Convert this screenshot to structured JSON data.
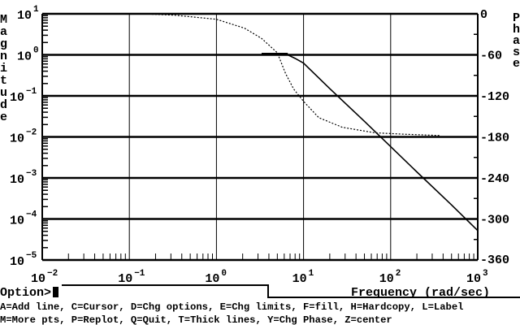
{
  "chart_data": {
    "type": "line",
    "xlabel": "Frequency (rad/sec)",
    "ylabel": "Magnitude",
    "y2label": "Phase",
    "x_scale": "log",
    "y_scale": "log",
    "xlim": [
      0.01,
      1000
    ],
    "ylim": [
      1e-05,
      10
    ],
    "y2lim": [
      -360,
      0
    ],
    "grid": true,
    "colors": {
      "foreground": "#000000",
      "background": "#ffffff"
    },
    "x_ticks": [
      {
        "base": "10",
        "exp": "-2"
      },
      {
        "base": "10",
        "exp": "-1"
      },
      {
        "base": "10",
        "exp": "0"
      },
      {
        "base": "10",
        "exp": "1"
      },
      {
        "base": "10",
        "exp": "2"
      },
      {
        "base": "10",
        "exp": "3"
      }
    ],
    "y_ticks": [
      {
        "base": "10",
        "exp": "1"
      },
      {
        "base": "10",
        "exp": "0"
      },
      {
        "base": "10",
        "exp": "-1"
      },
      {
        "base": "10",
        "exp": "-2"
      },
      {
        "base": "10",
        "exp": "-3"
      },
      {
        "base": "10",
        "exp": "-4"
      },
      {
        "base": "10",
        "exp": "-5"
      }
    ],
    "y2_ticks": [
      "0",
      "-60",
      "-120",
      "-180",
      "-240",
      "-300",
      "-360"
    ],
    "series": [
      {
        "axis": "left",
        "style": "solid",
        "x": [
          3.3,
          6.6,
          8,
          10,
          20,
          50,
          100,
          200,
          500,
          1000
        ],
        "y": [
          1,
          1,
          0.82,
          0.63,
          0.15,
          0.024,
          0.0058,
          0.0014,
          0.00022,
          5.2e-05
        ]
      },
      {
        "axis": "right",
        "style": "dotted",
        "x": [
          0.14,
          0.33,
          1,
          2.1,
          3.3,
          5,
          6.2,
          7.7,
          10,
          15,
          28,
          66,
          140,
          370
        ],
        "y": [
          0,
          -2,
          -8,
          -21,
          -36,
          -57,
          -87,
          -110,
          -128,
          -152,
          -166,
          -174,
          -176,
          -178
        ]
      }
    ]
  },
  "prompt": {
    "label": "Option>"
  },
  "help": {
    "line1": "A=Add line, C=Cursor, D=Chg options, E=Chg limits, F=fill, H=Hardcopy, L=Label",
    "line2": "M=More pts, P=Replot, Q=Quit, T=Thick lines, Y=Chg Phase, Z=center"
  }
}
